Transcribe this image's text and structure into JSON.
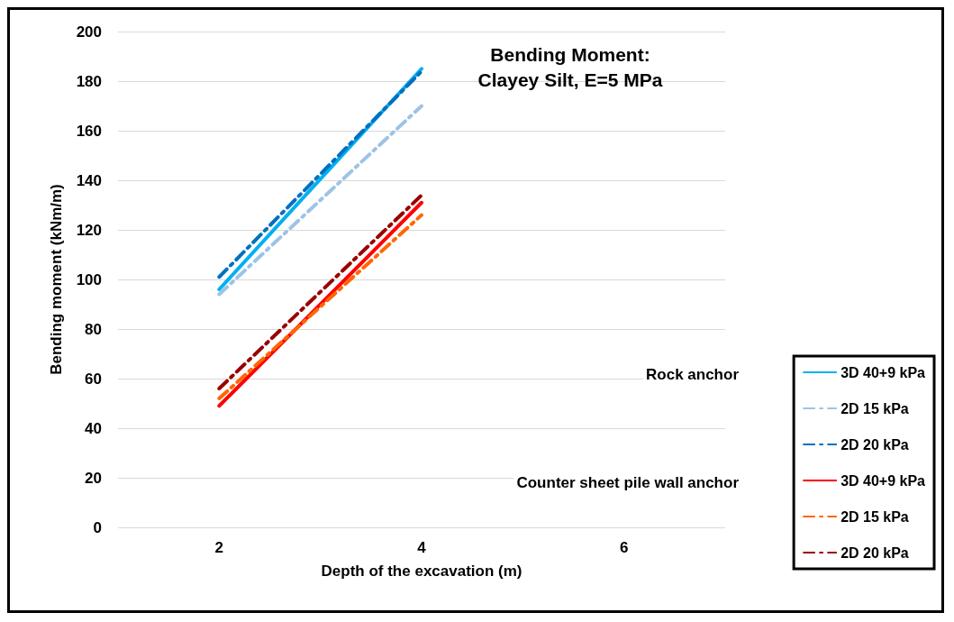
{
  "chart_data": {
    "type": "line",
    "title": "Bending Moment:\nClayey Silt, E=5 MPa",
    "xlabel": "Depth of the excavation (m)",
    "ylabel": "Bending moment (kNm/m)",
    "xlim": [
      1,
      7
    ],
    "xticks": [
      2,
      4,
      6
    ],
    "ylim": [
      0,
      200
    ],
    "yticks": [
      0,
      20,
      40,
      60,
      80,
      100,
      120,
      140,
      160,
      180,
      200
    ],
    "grid": "y",
    "legend": "bottom right",
    "marker": "none",
    "annotations": [
      "Rock anchor",
      "Counter sheet pile wall anchor"
    ],
    "x": [
      2,
      4
    ],
    "series": [
      {
        "name": "3D 40+9 kPa",
        "color": "#00b0f0",
        "line_style": "solid",
        "values": [
          96,
          185
        ]
      },
      {
        "name": "2D 15 kPa",
        "color": "#9dc3e6",
        "line_style": "dashed",
        "values": [
          94,
          170
        ]
      },
      {
        "name": "2D 20 kPa",
        "color": "#0070c0",
        "line_style": "dashed",
        "values": [
          101,
          184
        ]
      },
      {
        "name": "3D 40+9 kPa",
        "color": "#ff0000",
        "line_style": "solid",
        "values": [
          49,
          131
        ]
      },
      {
        "name": "2D 15 kPa",
        "color": "#ff6600",
        "line_style": "dashed",
        "values": [
          52,
          126
        ]
      },
      {
        "name": "2D 20 kPa",
        "color": "#990000",
        "line_style": "dashed",
        "values": [
          56,
          134
        ]
      }
    ]
  }
}
